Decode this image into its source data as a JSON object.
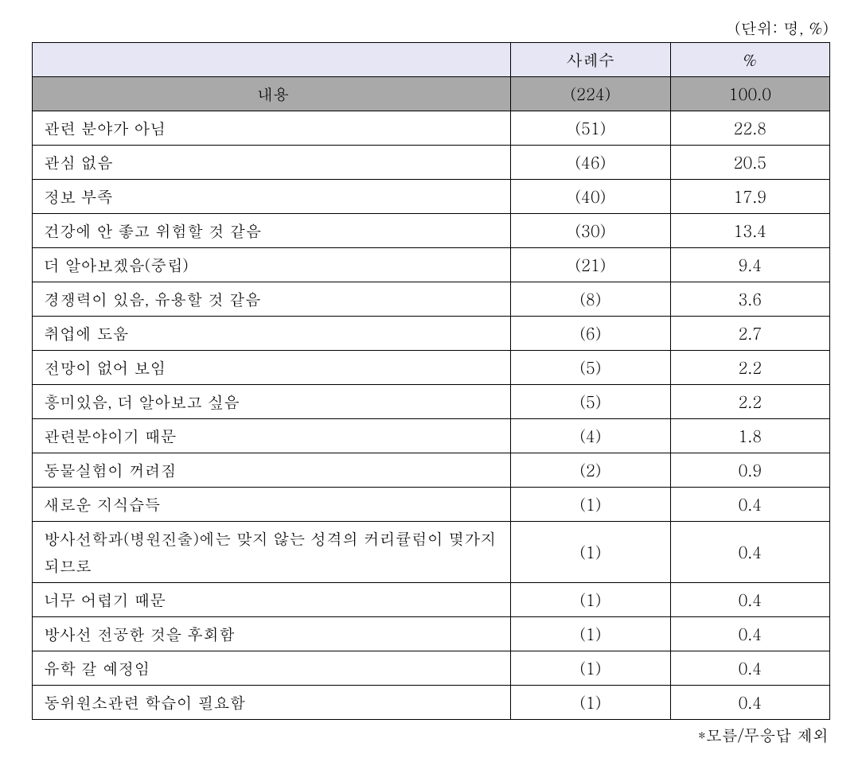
{
  "unit_label": "(단위: 명, %)",
  "headers": {
    "blank": "",
    "count": "사례수",
    "percent": "%"
  },
  "total": {
    "label": "내용",
    "count": "(224)",
    "percent": "100.0"
  },
  "rows": [
    {
      "label": "관련 분야가 아님",
      "count": "(51)",
      "percent": "22.8"
    },
    {
      "label": "관심 없음",
      "count": "(46)",
      "percent": "20.5"
    },
    {
      "label": "정보 부족",
      "count": "(40)",
      "percent": "17.9"
    },
    {
      "label": "건강에 안 좋고 위험할 것 같음",
      "count": "(30)",
      "percent": "13.4"
    },
    {
      "label": "더 알아보겠음(중립)",
      "count": "(21)",
      "percent": "9.4"
    },
    {
      "label": "경쟁력이 있음, 유용할 것 같음",
      "count": "(8)",
      "percent": "3.6"
    },
    {
      "label": "취업에 도움",
      "count": "(6)",
      "percent": "2.7"
    },
    {
      "label": "전망이 없어 보임",
      "count": "(5)",
      "percent": "2.2"
    },
    {
      "label": "흥미있음, 더 알아보고 싶음",
      "count": "(5)",
      "percent": "2.2"
    },
    {
      "label": "관련분야이기 때문",
      "count": "(4)",
      "percent": "1.8"
    },
    {
      "label": "동물실험이 꺼려짐",
      "count": "(2)",
      "percent": "0.9"
    },
    {
      "label": "새로운 지식습득",
      "count": "(1)",
      "percent": "0.4"
    },
    {
      "label": "방사선학과(병원진출)에는 맞지 않는 성격의 커리큘럼이 몇가지 되므로",
      "count": "(1)",
      "percent": "0.4"
    },
    {
      "label": "너무 어렵기 때문",
      "count": "(1)",
      "percent": "0.4"
    },
    {
      "label": "방사선 전공한 것을 후회함",
      "count": "(1)",
      "percent": "0.4"
    },
    {
      "label": "유학 갈 예정임",
      "count": "(1)",
      "percent": "0.4"
    },
    {
      "label": "동위원소관련 학습이 필요함",
      "count": "(1)",
      "percent": "0.4"
    }
  ],
  "footnote": "*모름/무응답 제외",
  "style": {
    "header_bg": "#e6e6f5",
    "total_bg": "#a9a9a9",
    "border_color": "#000000",
    "font_size": 20
  }
}
